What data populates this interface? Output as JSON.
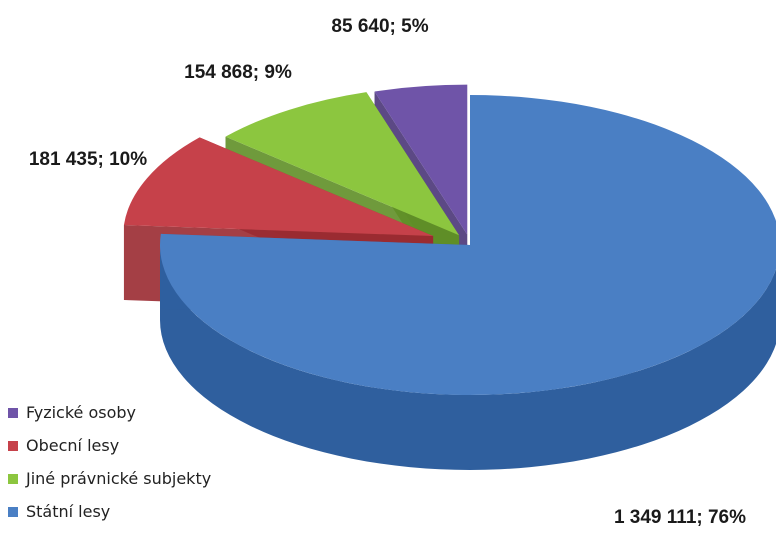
{
  "chart_data": {
    "type": "pie",
    "title": "",
    "three_d": true,
    "exploded": true,
    "legend_position": "bottom-left",
    "slices": [
      {
        "name": "Státní lesy",
        "value": 1349111,
        "percent": 76,
        "label": "1 349 111; 76%",
        "color": "#4a7fc4",
        "side_color": "#2f5f9e"
      },
      {
        "name": "Obecní lesy",
        "value": 181435,
        "percent": 10,
        "label": "181 435; 10%",
        "color": "#c6414a",
        "side_color": "#9a2a31"
      },
      {
        "name": "Jiné právnické subjekty",
        "value": 154868,
        "percent": 9,
        "label": "154 868; 9%",
        "color": "#8cc63f",
        "side_color": "#5f8f27"
      },
      {
        "name": "Fyzické osoby",
        "value": 85640,
        "percent": 5,
        "label": "85 640; 5%",
        "color": "#6f54a8",
        "side_color": "#4a3578"
      }
    ],
    "legend": [
      "Fyzické osoby",
      "Obecní lesy",
      "Jiné právnické subjekty",
      "Státní lesy"
    ]
  }
}
